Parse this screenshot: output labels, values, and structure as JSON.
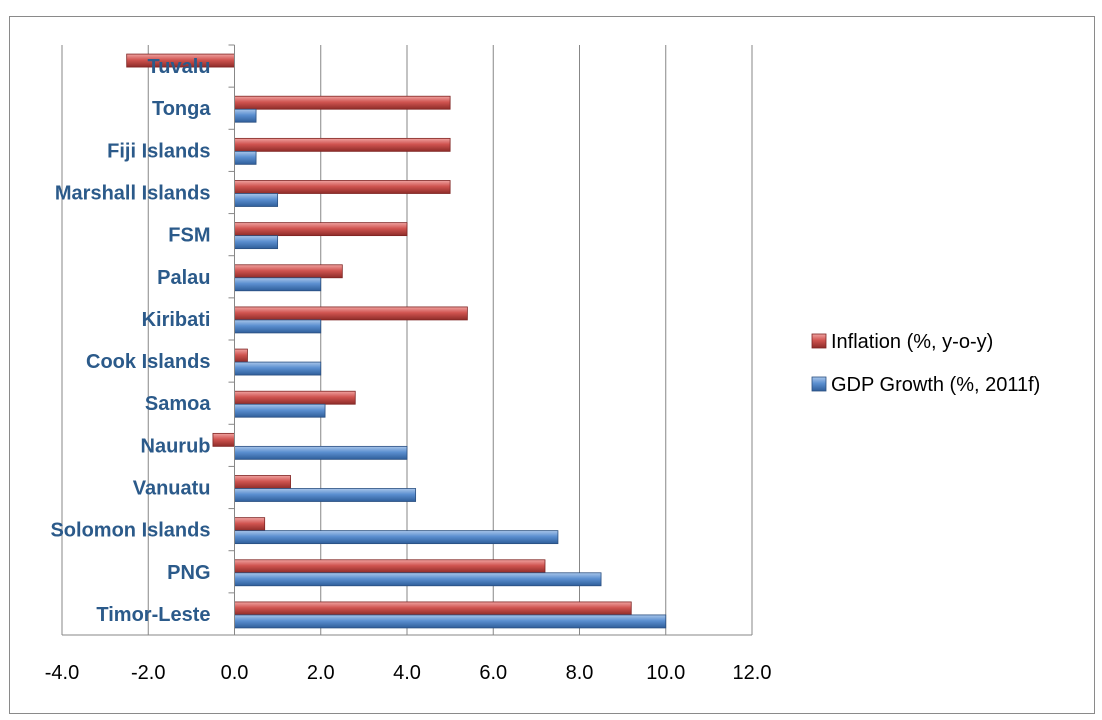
{
  "chart_data": {
    "type": "bar",
    "orientation": "horizontal",
    "categories": [
      "Timor-Leste",
      "PNG",
      "Solomon Islands",
      "Vanuatu",
      "Naurub",
      "Samoa",
      "Cook Islands",
      "Kiribati",
      "Palau",
      "FSM",
      "Marshall Islands",
      "Fiji Islands",
      "Tonga",
      "Tuvalu"
    ],
    "series": [
      {
        "name": "GDP Growth (%, 2011f)",
        "color": "#4f81bd",
        "values": [
          10.0,
          8.5,
          7.5,
          4.2,
          4.0,
          2.1,
          2.0,
          2.0,
          2.0,
          1.0,
          1.0,
          0.5,
          0.5,
          null
        ]
      },
      {
        "name": "Inflation (%, y-o-y)",
        "color": "#c0504d",
        "values": [
          9.2,
          7.2,
          0.7,
          1.3,
          -0.5,
          2.8,
          0.3,
          5.4,
          2.5,
          4.0,
          5.0,
          5.0,
          5.0,
          -2.5
        ]
      }
    ],
    "xlim": [
      -4.0,
      12.0
    ],
    "ticks": [
      "-4.0",
      "-2.0",
      "0.0",
      "2.0",
      "4.0",
      "6.0",
      "8.0",
      "10.0",
      "12.0"
    ],
    "tick_values": [
      -4,
      -2,
      0,
      2,
      4,
      6,
      8,
      10,
      12
    ],
    "gridlines": "vertical",
    "legend": "right"
  }
}
